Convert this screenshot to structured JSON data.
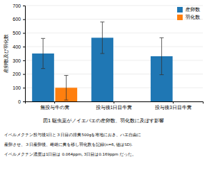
{
  "chart_data": {
    "type": "bar",
    "title": "図1  駆虫薬がノイエバエの産卵数、羽化数に及ぼす影響",
    "y_label": "産卵数及び羽化数",
    "categories": [
      "無投与牛の糞",
      "投与後1日目牛糞",
      "投与後3日目牛糞"
    ],
    "series": [
      {
        "name": "産卵数",
        "values": [
          350,
          465,
          330
        ],
        "errors": [
          110,
          115,
          135
        ]
      },
      {
        "name": "羽化数",
        "values": [
          100,
          null,
          null
        ],
        "errors": [
          90,
          null,
          null
        ]
      }
    ],
    "ylim": [
      0,
      700
    ],
    "yticks": [
      0,
      100,
      200,
      300,
      400,
      500,
      600,
      700
    ],
    "grid": true,
    "legend": "upper-right",
    "annotations": [
      "イベルメクチン投与後1日と３日目の排糞500gを堆地におき、ハエ自由に",
      "産卵させ、３日産卵後、雌雄に糞を移し羽化数を記録(n=6, 値はSD).",
      "イベルメクチン濃度は1日目は 0.064ppm, 3日目は0.169ppm だった。"
    ]
  }
}
